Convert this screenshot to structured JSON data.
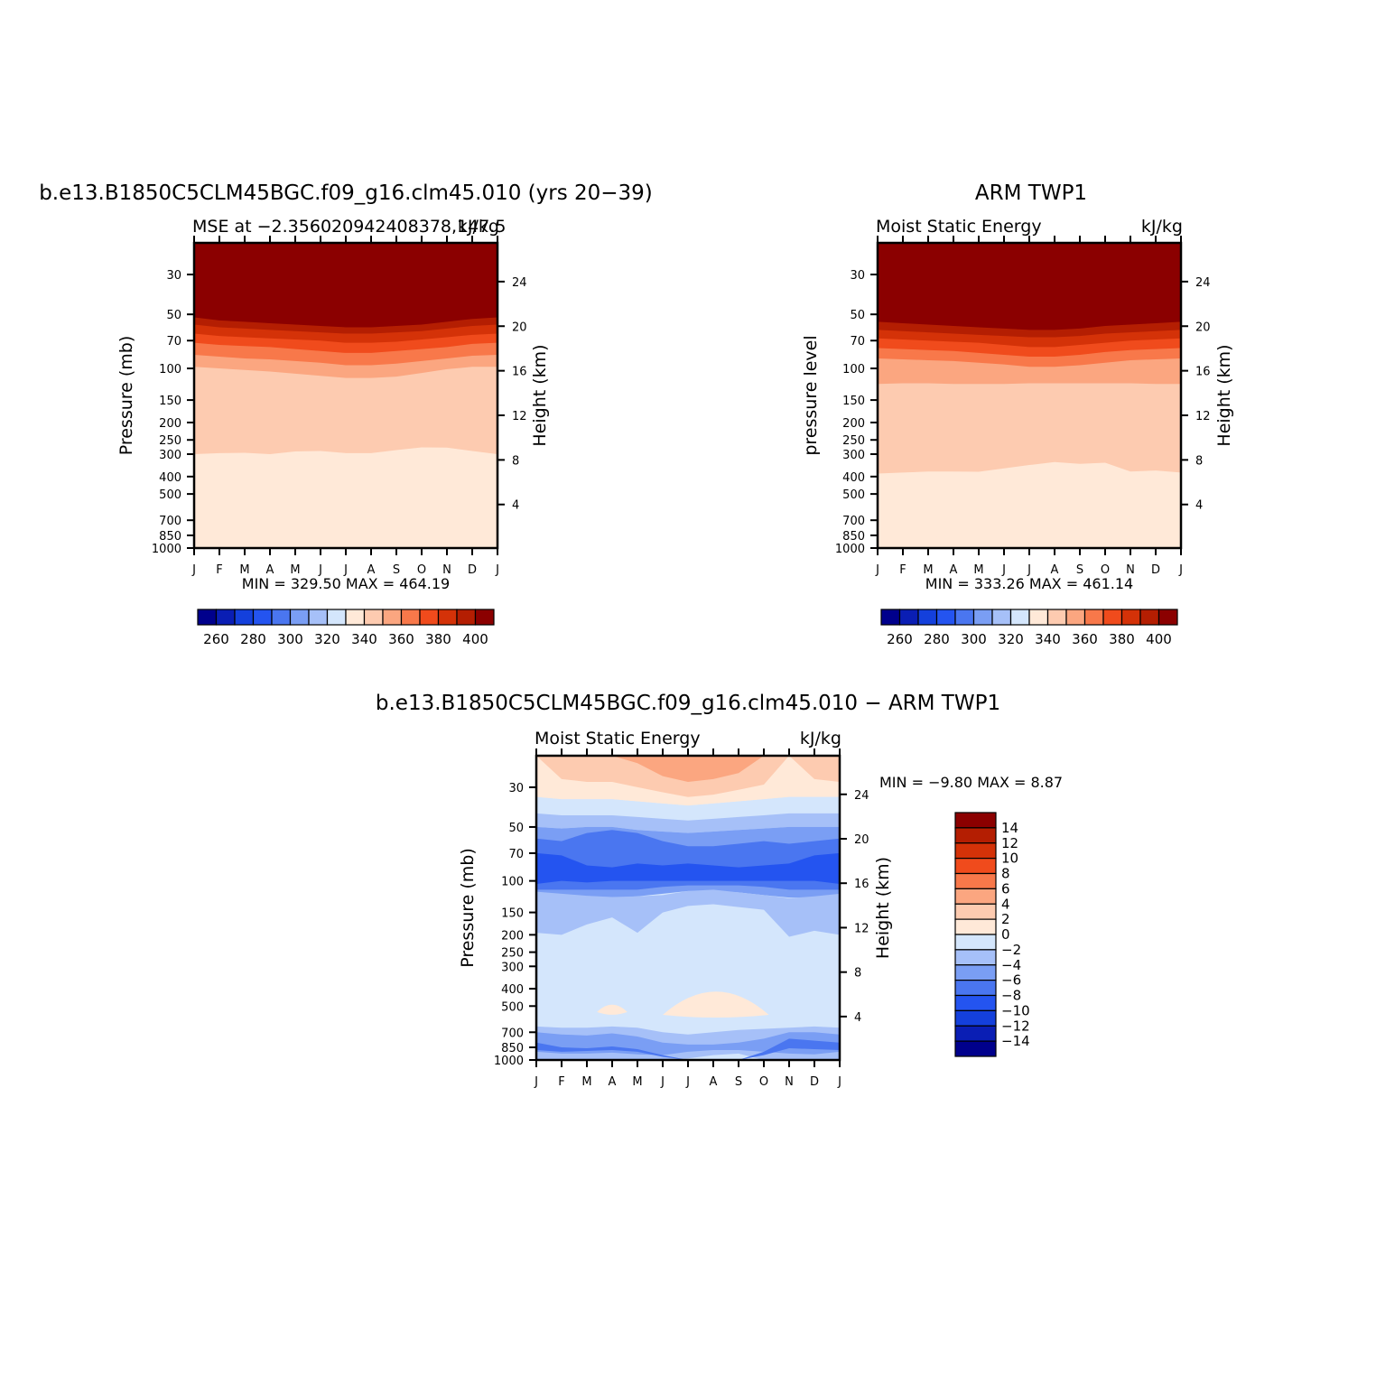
{
  "months": [
    "J",
    "F",
    "M",
    "A",
    "M",
    "J",
    "J",
    "A",
    "S",
    "O",
    "N",
    "D",
    "J"
  ],
  "pressure_ticks": [
    "30",
    "50",
    "70",
    "100",
    "150",
    "200",
    "250",
    "300",
    "400",
    "500",
    "700",
    "850",
    "1000"
  ],
  "height_ticks": [
    "24",
    "20",
    "16",
    "12",
    "8",
    "4"
  ],
  "colors": {
    "mse_palette": [
      "#00008c",
      "#0a1eb4",
      "#1440dc",
      "#2454f0",
      "#4a76f0",
      "#7a9ef4",
      "#a6c0f8",
      "#d4e6fc",
      "#ffe9d8",
      "#fdcbb0",
      "#fba680",
      "#f8784a",
      "#f04b1c",
      "#d43208",
      "#b41e02",
      "#8b0000"
    ],
    "diff_palette": [
      "#00008c",
      "#0a1eb4",
      "#1440dc",
      "#2454f0",
      "#4a76f0",
      "#7a9ef4",
      "#a6c0f8",
      "#d4e6fc",
      "#ffe9d8",
      "#fdcbb0",
      "#fba680",
      "#f8784a",
      "#f04b1c",
      "#d43208",
      "#b41e02",
      "#8b0000"
    ]
  },
  "chart_data": [
    {
      "id": "model",
      "type": "heatmap",
      "title": "b.e13.B1850C5CLM45BGC.f09_g16.clm45.010 (yrs 20−39)",
      "left_title": "MSE at −2.356020942408378,147.5",
      "right_title": "kJ/kg",
      "ylabel": "Pressure (mb)",
      "ylabel2": "Height (km)",
      "min_label": "MIN = 329.50 MAX = 464.19",
      "x": [
        "J",
        "F",
        "M",
        "A",
        "M",
        "J",
        "J",
        "A",
        "S",
        "O",
        "N",
        "D",
        "J"
      ],
      "y_scale": "log",
      "ylim": [
        1000,
        20
      ],
      "contour_levels": [
        250,
        260,
        270,
        280,
        290,
        300,
        310,
        320,
        330,
        340,
        350,
        360,
        370,
        380,
        390,
        400
      ],
      "colorbar_labels": [
        "260",
        "280",
        "300",
        "320",
        "340",
        "360",
        "380",
        "400"
      ],
      "boundaries": [
        {
          "value": 400,
          "pressure": [
            52,
            54,
            55,
            56,
            57,
            58,
            59,
            59,
            58,
            57,
            55,
            53,
            52
          ]
        },
        {
          "value": 390,
          "pressure": [
            57,
            59,
            60,
            61,
            62,
            63,
            64,
            64,
            63,
            62,
            60,
            58,
            57
          ]
        },
        {
          "value": 380,
          "pressure": [
            64,
            66,
            67,
            68,
            69,
            70,
            72,
            72,
            71,
            69,
            67,
            65,
            64
          ]
        },
        {
          "value": 370,
          "pressure": [
            72,
            74,
            75,
            76,
            78,
            80,
            82,
            82,
            80,
            78,
            76,
            73,
            72
          ]
        },
        {
          "value": 360,
          "pressure": [
            84,
            86,
            88,
            89,
            91,
            93,
            96,
            96,
            94,
            91,
            88,
            85,
            84
          ]
        },
        {
          "value": 350,
          "pressure": [
            98,
            100,
            102,
            104,
            107,
            110,
            113,
            113,
            111,
            106,
            101,
            98,
            98
          ]
        },
        {
          "value": 340,
          "pressure": [
            300,
            296,
            295,
            300,
            290,
            288,
            296,
            296,
            285,
            275,
            276,
            288,
            300
          ]
        },
        {
          "value": 335,
          "pressure": [
            940,
            942,
            942,
            940,
            940,
            942,
            944,
            944,
            942,
            940,
            940,
            940,
            940
          ]
        }
      ],
      "low_patch": {
        "value": 330,
        "months": [
          8.6,
          10.1
        ],
        "pressure": [
          690,
          730
        ]
      }
    },
    {
      "id": "obs",
      "type": "heatmap",
      "title": "ARM TWP1",
      "left_title": "Moist Static Energy",
      "right_title": "kJ/kg",
      "ylabel": "pressure level",
      "ylabel2": "Height (km)",
      "min_label": "MIN = 333.26 MAX = 461.14",
      "x": [
        "J",
        "F",
        "M",
        "A",
        "M",
        "J",
        "J",
        "A",
        "S",
        "O",
        "N",
        "D",
        "J"
      ],
      "y_scale": "log",
      "ylim": [
        1000,
        20
      ],
      "contour_levels": [
        250,
        260,
        270,
        280,
        290,
        300,
        310,
        320,
        330,
        340,
        350,
        360,
        370,
        380,
        390,
        400
      ],
      "colorbar_labels": [
        "260",
        "280",
        "300",
        "320",
        "340",
        "360",
        "380",
        "400"
      ],
      "boundaries": [
        {
          "value": 400,
          "pressure": [
            55,
            56,
            57,
            58,
            59,
            60,
            61,
            61,
            60,
            58,
            57,
            56,
            55
          ]
        },
        {
          "value": 390,
          "pressure": [
            61,
            62,
            63,
            64,
            65,
            66,
            67,
            67,
            66,
            64,
            63,
            62,
            61
          ]
        },
        {
          "value": 380,
          "pressure": [
            68,
            69,
            70,
            71,
            72,
            74,
            76,
            76,
            74,
            72,
            70,
            69,
            68
          ]
        },
        {
          "value": 370,
          "pressure": [
            77,
            78,
            79,
            80,
            82,
            84,
            86,
            86,
            84,
            81,
            79,
            78,
            77
          ]
        },
        {
          "value": 360,
          "pressure": [
            88,
            89,
            90,
            91,
            93,
            95,
            98,
            98,
            96,
            93,
            90,
            89,
            88
          ]
        },
        {
          "value": 350,
          "pressure": [
            122,
            121,
            121,
            122,
            122,
            122,
            121,
            121,
            121,
            121,
            121,
            122,
            122
          ]
        },
        {
          "value": 340,
          "pressure": [
            385,
            380,
            375,
            375,
            376,
            360,
            345,
            332,
            340,
            335,
            375,
            370,
            380
          ]
        },
        {
          "value": 335,
          "pressure": [
            870,
            880,
            875,
            850,
            860,
            890,
            895,
            892,
            895,
            890,
            865,
            865,
            870
          ]
        }
      ]
    },
    {
      "id": "diff",
      "type": "heatmap",
      "title": "b.e13.B1850C5CLM45BGC.f09_g16.clm45.010 − ARM TWP1",
      "left_title": "Moist Static Energy",
      "right_title": "kJ/kg",
      "ylabel": "Pressure (mb)",
      "ylabel2": "Height (km)",
      "min_label": "MIN =   −9.80 MAX =    8.87",
      "x": [
        "J",
        "F",
        "M",
        "A",
        "M",
        "J",
        "J",
        "A",
        "S",
        "O",
        "N",
        "D",
        "J"
      ],
      "y_scale": "log",
      "ylim": [
        1000,
        20
      ],
      "contour_levels": [
        -15,
        -14,
        -12,
        -10,
        -8,
        -6,
        -4,
        -2,
        0,
        2,
        4,
        6,
        8,
        10,
        12,
        14
      ],
      "colorbar_labels": [
        "14",
        "12",
        "10",
        "8",
        "6",
        "4",
        "2",
        "0",
        "−2",
        "−4",
        "−6",
        "−8",
        "−10",
        "−12",
        "−14"
      ],
      "layers": [
        {
          "value": 1,
          "top": [
            20,
            20,
            20,
            20,
            20,
            20,
            20,
            20,
            20,
            20,
            20,
            20,
            20
          ],
          "bottom": [
            34,
            35,
            35,
            35,
            36,
            37,
            38,
            37,
            36,
            35,
            34,
            34,
            34
          ],
          "note": "0 to 2 band aloft"
        },
        {
          "value": 3,
          "top": [
            20,
            20,
            20,
            20,
            20,
            20,
            20,
            20,
            20,
            20,
            20,
            20,
            20
          ],
          "bottom": [
            20,
            27,
            28,
            28,
            30,
            32,
            34,
            33,
            31,
            29,
            20,
            27,
            28
          ],
          "note": "2 to 4 core"
        },
        {
          "value": 5,
          "top": [
            20,
            20,
            20,
            20,
            20,
            20,
            20,
            20,
            20,
            20,
            20,
            20,
            20
          ],
          "bottom": [
            20,
            20,
            20,
            20,
            22,
            26,
            28,
            27,
            25,
            20,
            20,
            20,
            20
          ],
          "note": "4 to 6 core"
        },
        {
          "value": -1,
          "top": [
            34,
            35,
            35,
            35,
            36,
            37,
            38,
            37,
            36,
            35,
            34,
            34,
            34
          ],
          "bottom": [
            42,
            43,
            43,
            43,
            44,
            45,
            46,
            45,
            44,
            43,
            42,
            42,
            42
          ],
          "note": "0 to -2"
        },
        {
          "value": -3,
          "top": [
            42,
            43,
            43,
            43,
            44,
            45,
            46,
            45,
            44,
            43,
            42,
            42,
            42
          ],
          "bottom": [
            50,
            51,
            50,
            50,
            52,
            53,
            54,
            53,
            52,
            51,
            50,
            50,
            50
          ],
          "note": "-2 to -4"
        },
        {
          "value": -5,
          "top": [
            50,
            51,
            50,
            50,
            52,
            53,
            54,
            53,
            52,
            51,
            50,
            50,
            50
          ],
          "bottom": [
            120,
            122,
            124,
            124,
            122,
            118,
            114,
            114,
            116,
            120,
            124,
            124,
            120
          ],
          "note": "-4 to -6"
        },
        {
          "value": -7,
          "top": [
            58,
            60,
            54,
            52,
            54,
            60,
            64,
            64,
            62,
            60,
            62,
            60,
            58
          ],
          "bottom": [
            112,
            112,
            112,
            112,
            112,
            108,
            106,
            106,
            106,
            108,
            112,
            112,
            112
          ],
          "note": "-6 to -8"
        },
        {
          "value": -9,
          "top": [
            70,
            72,
            82,
            84,
            80,
            82,
            80,
            82,
            84,
            82,
            80,
            72,
            70
          ],
          "bottom": [
            104,
            100,
            102,
            100,
            100,
            100,
            100,
            100,
            100,
            100,
            100,
            100,
            104
          ],
          "note": "-8 to -10"
        },
        {
          "value": -3,
          "top": [
            115,
            118,
            121,
            123,
            122,
            120,
            114,
            112,
            116,
            120,
            125,
            122,
            118
          ],
          "bottom": [
            195,
            200,
            175,
            160,
            195,
            150,
            138,
            135,
            140,
            145,
            205,
            190,
            200
          ],
          "note": "-2 to -4 shoulder"
        },
        {
          "value": -1,
          "top": [
            580,
            620,
            620,
            610,
            620,
            630,
            640,
            640,
            620,
            620,
            640,
            640,
            620
          ],
          "bottom": [
            1000,
            1000,
            1000,
            1000,
            1000,
            1000,
            1000,
            1000,
            1000,
            1000,
            1000,
            1000,
            1000
          ],
          "note": "0 to -2 lower"
        },
        {
          "value": -3,
          "top": [
            650,
            660,
            660,
            650,
            660,
            700,
            720,
            700,
            680,
            670,
            660,
            650,
            660
          ],
          "bottom": [
            1000,
            1000,
            1000,
            1000,
            1000,
            1000,
            980,
            940,
            920,
            1000,
            1000,
            1000,
            1000
          ],
          "note": "-2 to -4 lower"
        },
        {
          "value": -5,
          "top": [
            700,
            720,
            730,
            710,
            740,
            800,
            820,
            820,
            800,
            760,
            700,
            700,
            720
          ],
          "bottom": [
            900,
            920,
            920,
            910,
            930,
            940,
            900,
            880,
            880,
            900,
            920,
            930,
            900
          ],
          "note": "-4 to -6 lower"
        },
        {
          "value": -7,
          "top": [
            800,
            850,
            860,
            840,
            870,
            940,
            1000,
            1000,
            1000,
            900,
            760,
            780,
            800
          ],
          "bottom": [
            880,
            900,
            890,
            880,
            900,
            960,
            1000,
            1000,
            1000,
            940,
            860,
            870,
            880
          ],
          "note": "-6 to -8 lower"
        }
      ],
      "warm_patches": [
        {
          "value": 1,
          "months": [
            5.0,
            9.2
          ],
          "pressure": [
            385,
            560
          ],
          "note": "0 to 2 mid troposphere"
        },
        {
          "value": 1,
          "months": [
            2.4,
            3.6
          ],
          "pressure": [
            480,
            540
          ],
          "note": "small 0 to 2 patch"
        }
      ]
    }
  ]
}
